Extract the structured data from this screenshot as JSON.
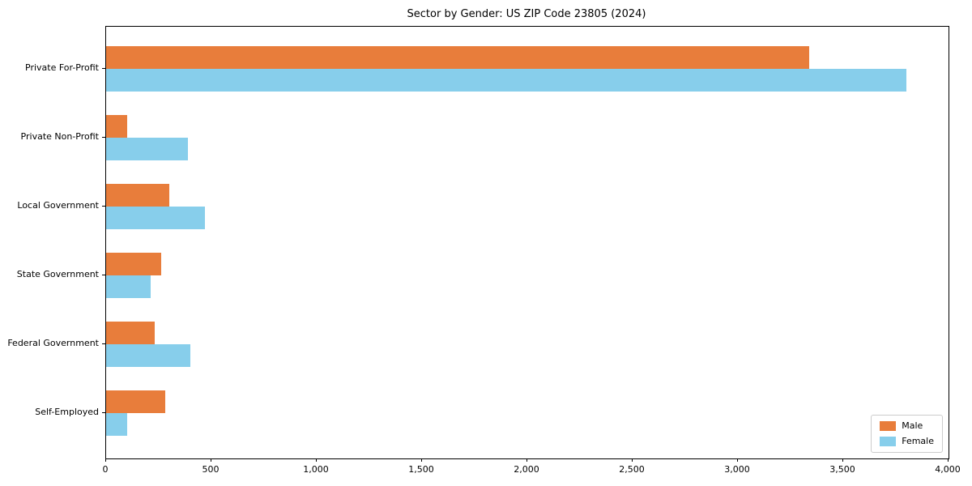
{
  "chart_data": {
    "type": "bar",
    "orientation": "horizontal",
    "title": "Sector by Gender: US ZIP Code 23805 (2024)",
    "categories": [
      "Private For-Profit",
      "Private Non-Profit",
      "Local Government",
      "State Government",
      "Federal Government",
      "Self-Employed"
    ],
    "series": [
      {
        "name": "Male",
        "color": "#e87d3b",
        "values": [
          3340,
          100,
          300,
          260,
          230,
          280
        ]
      },
      {
        "name": "Female",
        "color": "#87ceeb",
        "values": [
          3800,
          390,
          470,
          210,
          400,
          100
        ]
      }
    ],
    "xlabel": "",
    "ylabel": "",
    "xlim": [
      0,
      4000
    ],
    "xticks": [
      0,
      500,
      1000,
      1500,
      2000,
      2500,
      3000,
      3500,
      4000
    ],
    "grid": false,
    "legend_position": "lower right"
  }
}
